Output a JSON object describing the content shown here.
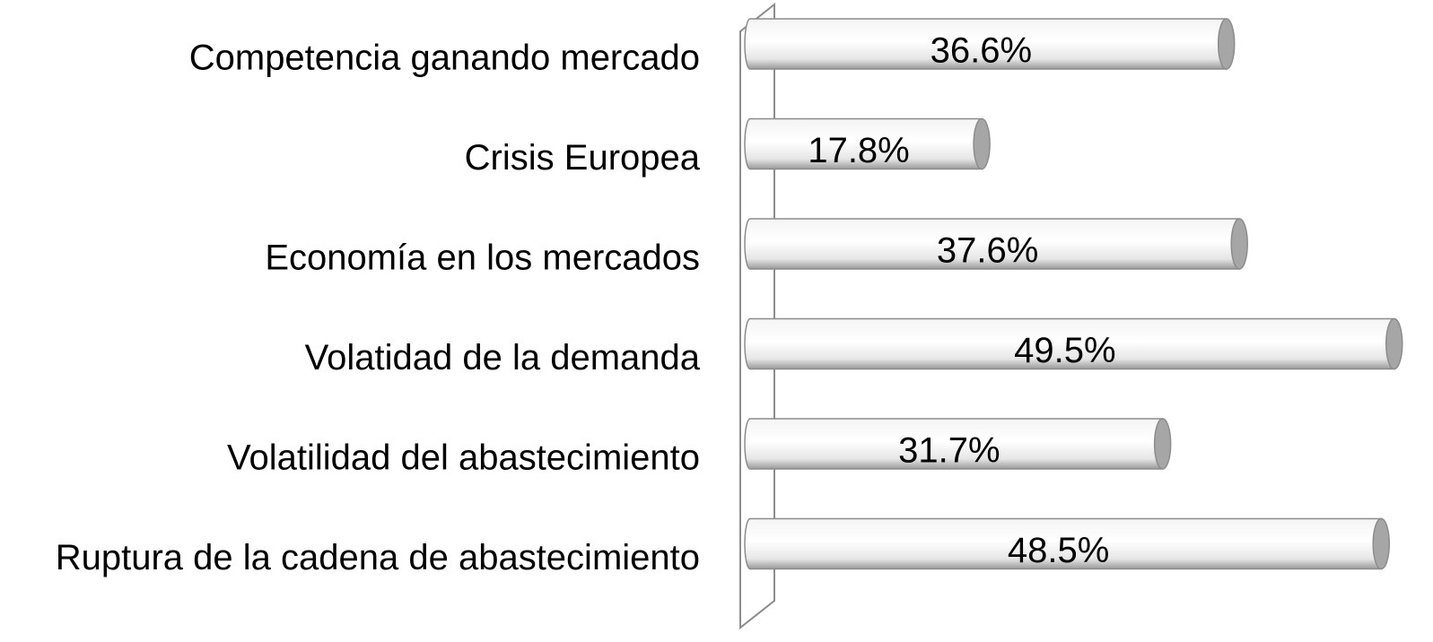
{
  "chart_data": {
    "type": "bar",
    "orientation": "horizontal",
    "categories": [
      "Competencia ganando mercado",
      "Crisis Europea",
      "Economía en los mercados",
      "Volatidad de la demanda",
      "Volatilidad del abastecimiento",
      "Ruptura de la cadena de abastecimiento"
    ],
    "values": [
      36.6,
      17.8,
      37.6,
      49.5,
      31.7,
      48.5
    ],
    "value_labels": [
      "36.6%",
      "17.8%",
      "37.6%",
      "49.5%",
      "31.7%",
      "48.5%"
    ],
    "color": "#a6a6a6",
    "xlim": [
      0,
      50
    ]
  }
}
